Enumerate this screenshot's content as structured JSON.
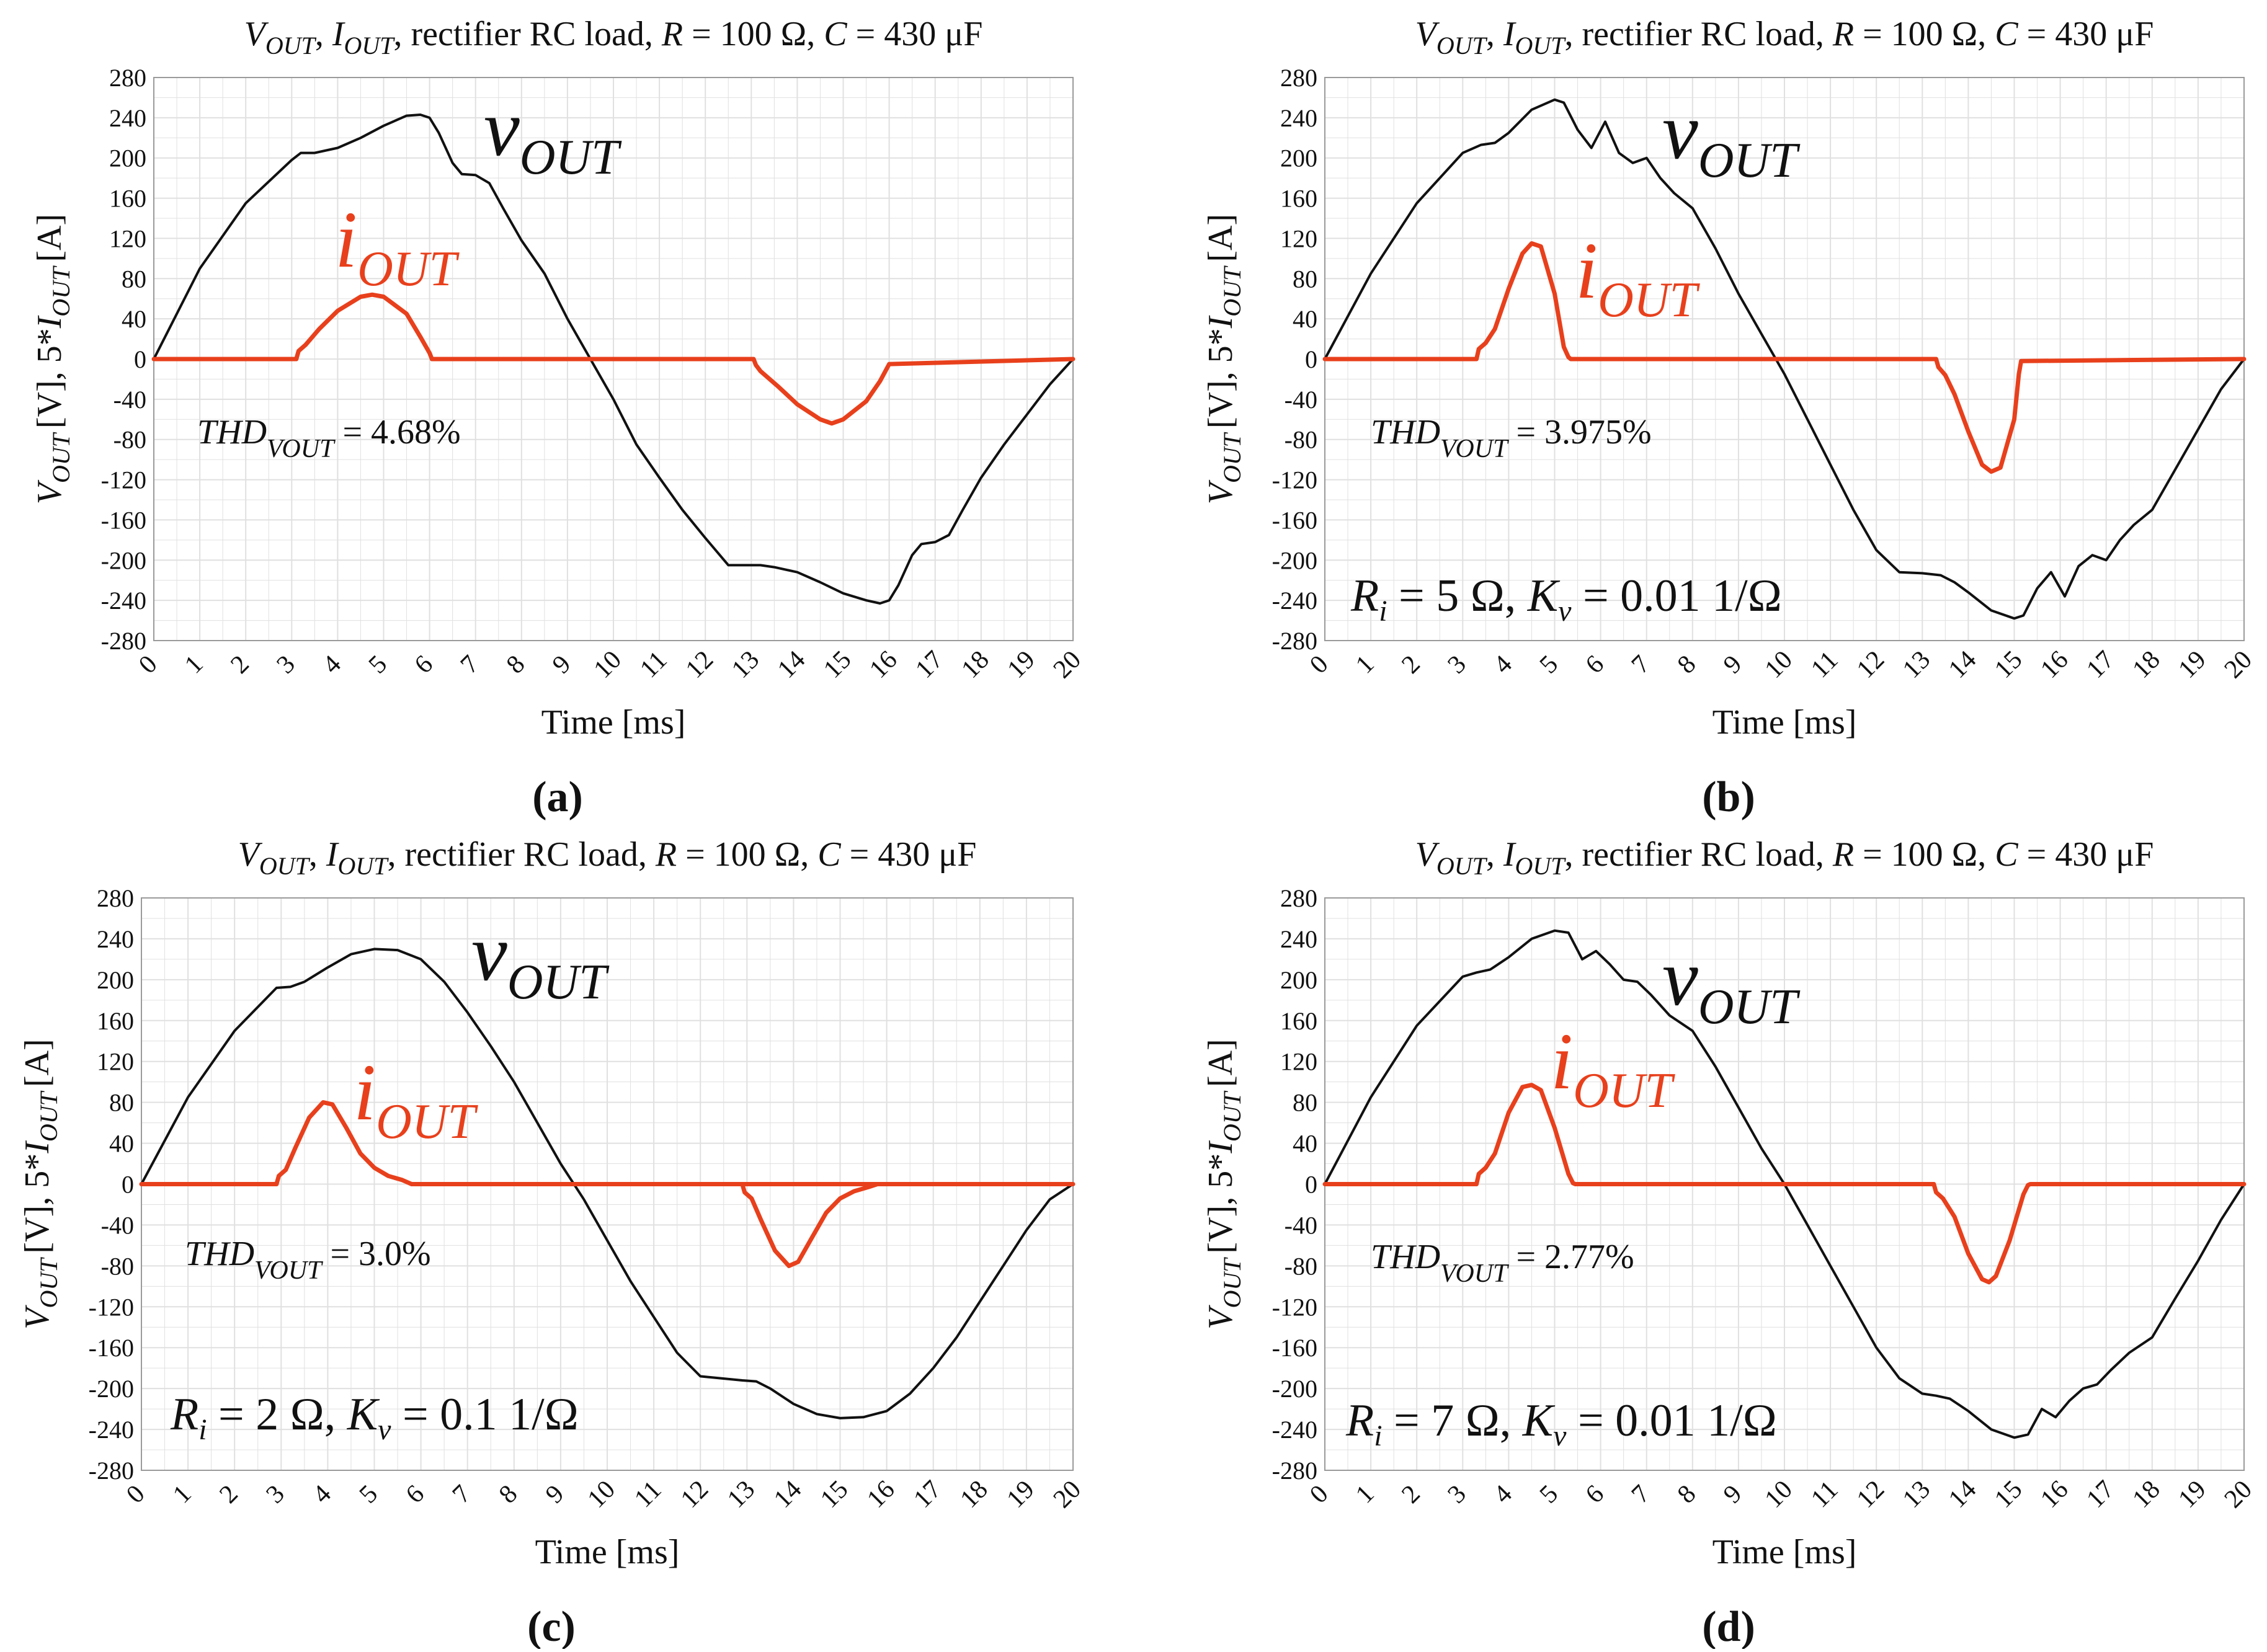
{
  "panels_common": {
    "x_ticks": [
      "0",
      "1",
      "2",
      "3",
      "4",
      "5",
      "6",
      "7",
      "8",
      "9",
      "10",
      "11",
      "12",
      "13",
      "14",
      "15",
      "16",
      "17",
      "18",
      "19",
      "20"
    ],
    "y_ticks": [
      "280",
      "240",
      "200",
      "160",
      "120",
      "80",
      "40",
      "0",
      "-40",
      "-80",
      "-120",
      "-160",
      "-200",
      "-240",
      "-280"
    ]
  },
  "colors": {
    "vout": "#111111",
    "iout": "#e8401c",
    "grid": "#e0e0e0",
    "frame": "#9a9a9a"
  },
  "chart_data": [
    {
      "type": "line",
      "panel_label": "(a)",
      "title": {
        "v_main": "V",
        "v_sub": "OUT",
        "i_main": "I",
        "i_sub": "OUT",
        "rest": "rectifier RC load,",
        "r_italic": "R",
        "r_value": "= 100 Ω,",
        "c_italic": "C",
        "c_value": "= 430",
        "c_unit": "μF"
      },
      "xlabel": "Time [ms]",
      "ylabel": {
        "v_main": "V",
        "v_sub": "OUT",
        "mid": "[V], 5*",
        "i_main": "I",
        "i_sub": "OUT",
        "end": "[A]"
      },
      "xlim": [
        0,
        20
      ],
      "ylim": [
        -280,
        280
      ],
      "grid": true,
      "series": [
        {
          "name": "v_OUT",
          "label_main": "v",
          "label_sub": "OUT",
          "x": [
            0,
            1,
            2,
            3,
            3.2,
            3.5,
            4,
            4.5,
            5,
            5.5,
            5.8,
            6,
            6.2,
            6.5,
            6.7,
            7,
            7.3,
            7.6,
            8,
            8.5,
            9,
            9.5,
            10,
            10.5,
            11,
            11.5,
            12,
            12.5,
            13,
            13.2,
            13.5,
            14,
            14.5,
            15,
            15.5,
            15.8,
            16,
            16.2,
            16.5,
            16.7,
            17,
            17.3,
            17.6,
            18,
            18.5,
            19,
            19.5,
            20
          ],
          "y": [
            0,
            90,
            155,
            198,
            205,
            205,
            210,
            220,
            232,
            242,
            243,
            240,
            225,
            195,
            184,
            183,
            175,
            150,
            118,
            85,
            40,
            0,
            -40,
            -85,
            -118,
            -150,
            -178,
            -205,
            -205,
            -205,
            -207,
            -212,
            -222,
            -233,
            -240,
            -243,
            -240,
            -225,
            -195,
            -184,
            -182,
            -175,
            -150,
            -118,
            -85,
            -55,
            -25,
            0
          ]
        },
        {
          "name": "i_OUT",
          "label_main": "i",
          "label_sub": "OUT",
          "x": [
            0,
            3.1,
            3.15,
            3.3,
            3.6,
            4,
            4.5,
            4.75,
            5,
            5.5,
            5.8,
            6,
            6.05,
            13.05,
            13.1,
            13.2,
            13.6,
            14,
            14.5,
            14.75,
            15,
            15.5,
            15.8,
            16,
            20
          ],
          "y": [
            0,
            0,
            8,
            14,
            30,
            48,
            62,
            64,
            62,
            45,
            22,
            6,
            0,
            0,
            -6,
            -12,
            -28,
            -45,
            -60,
            -64,
            -60,
            -42,
            -22,
            -5,
            0
          ]
        }
      ],
      "annotations": [
        {
          "main": "THD",
          "sub": "VOUT",
          "value": "= 4.68%"
        }
      ]
    },
    {
      "type": "line",
      "panel_label": "(b)",
      "title": {
        "v_main": "V",
        "v_sub": "OUT",
        "i_main": "I",
        "i_sub": "OUT",
        "rest": "rectifier RC load,",
        "r_italic": "R",
        "r_value": "= 100 Ω,",
        "c_italic": "C",
        "c_value": "= 430",
        "c_unit": "μF"
      },
      "xlabel": "Time [ms]",
      "ylabel": {
        "v_main": "V",
        "v_sub": "OUT",
        "mid": "[V], 5*",
        "i_main": "I",
        "i_sub": "OUT",
        "end": "[A]"
      },
      "xlim": [
        0,
        20
      ],
      "ylim": [
        -280,
        280
      ],
      "grid": true,
      "series": [
        {
          "name": "v_OUT",
          "label_main": "v",
          "label_sub": "OUT",
          "x": [
            0,
            1,
            2,
            3,
            3.4,
            3.7,
            4,
            4.5,
            5,
            5.2,
            5.5,
            5.8,
            6.1,
            6.4,
            6.7,
            7,
            7.3,
            7.6,
            8,
            8.5,
            9,
            9.5,
            10,
            10.5,
            11,
            11.5,
            12,
            12.5,
            13,
            13.4,
            13.7,
            14,
            14.5,
            15,
            15.2,
            15.5,
            15.8,
            16.1,
            16.4,
            16.7,
            17,
            17.3,
            17.6,
            18,
            18.5,
            19,
            19.5,
            20
          ],
          "y": [
            0,
            85,
            155,
            205,
            213,
            215,
            225,
            248,
            258,
            255,
            228,
            210,
            236,
            205,
            195,
            200,
            180,
            165,
            150,
            110,
            65,
            25,
            -15,
            -60,
            -105,
            -150,
            -190,
            -212,
            -213,
            -215,
            -222,
            -232,
            -250,
            -258,
            -255,
            -228,
            -212,
            -236,
            -206,
            -195,
            -200,
            -180,
            -165,
            -150,
            -110,
            -70,
            -30,
            0
          ]
        },
        {
          "name": "i_OUT",
          "label_main": "i",
          "label_sub": "OUT",
          "x": [
            0,
            3.3,
            3.35,
            3.5,
            3.7,
            4,
            4.3,
            4.5,
            4.7,
            5,
            5.2,
            5.3,
            5.35,
            13.3,
            13.35,
            13.5,
            13.7,
            14,
            14.3,
            14.5,
            14.7,
            15,
            15.1,
            15.15,
            20
          ],
          "y": [
            0,
            0,
            10,
            16,
            30,
            70,
            105,
            115,
            112,
            65,
            12,
            2,
            0,
            0,
            -8,
            -16,
            -35,
            -72,
            -105,
            -112,
            -108,
            -60,
            -15,
            -2,
            0
          ]
        }
      ],
      "annotations": [
        {
          "main": "THD",
          "sub": "VOUT",
          "value": "= 3.975%"
        },
        {
          "r_main": "R",
          "r_sub": "i",
          "r_value": "= 5 Ω,",
          "k_main": "K",
          "k_sub": "v",
          "k_value": "= 0.01 1/Ω"
        }
      ]
    },
    {
      "type": "line",
      "panel_label": "(c)",
      "title": {
        "v_main": "V",
        "v_sub": "OUT",
        "i_main": "I",
        "i_sub": "OUT",
        "rest": "rectifier RC load,",
        "r_italic": "R",
        "r_value": "= 100 Ω,",
        "c_italic": "C",
        "c_value": "= 430",
        "c_unit": "μF"
      },
      "xlabel": "Time [ms]",
      "ylabel": {
        "v_main": "V",
        "v_sub": "OUT",
        "mid": "[V], 5*",
        "i_main": "I",
        "i_sub": "OUT",
        "end": "[A]"
      },
      "xlim": [
        0,
        20
      ],
      "ylim": [
        -280,
        280
      ],
      "grid": true,
      "series": [
        {
          "name": "v_OUT",
          "label_main": "v",
          "label_sub": "OUT",
          "x": [
            0,
            1,
            2,
            2.9,
            3.2,
            3.5,
            4,
            4.5,
            5,
            5.5,
            6,
            6.5,
            7,
            7.5,
            8,
            8.5,
            9,
            9.5,
            10,
            10.5,
            11,
            11.5,
            12,
            12.9,
            13.2,
            13.5,
            14,
            14.5,
            15,
            15.5,
            16,
            16.5,
            17,
            17.5,
            18,
            18.5,
            19,
            19.5,
            20
          ],
          "y": [
            0,
            85,
            150,
            192,
            193,
            198,
            212,
            225,
            230,
            229,
            220,
            198,
            168,
            135,
            100,
            60,
            20,
            -15,
            -55,
            -95,
            -130,
            -165,
            -188,
            -192,
            -193,
            -200,
            -215,
            -225,
            -229,
            -228,
            -222,
            -205,
            -180,
            -150,
            -115,
            -80,
            -45,
            -15,
            0
          ]
        },
        {
          "name": "i_OUT",
          "label_main": "i",
          "label_sub": "OUT",
          "x": [
            0,
            2.9,
            2.95,
            3.1,
            3.3,
            3.6,
            3.9,
            4.1,
            4.4,
            4.7,
            5,
            5.3,
            5.6,
            5.8,
            20
          ],
          "y": [
            0,
            0,
            8,
            14,
            35,
            65,
            80,
            78,
            55,
            30,
            16,
            8,
            4,
            0,
            0
          ]
        },
        {
          "name": "i_OUT_neg",
          "x": [
            12.9,
            12.95,
            13.1,
            13.3,
            13.6,
            13.9,
            14.1,
            14.4,
            14.7,
            15,
            15.3,
            15.6,
            15.8
          ],
          "y": [
            0,
            -8,
            -14,
            -35,
            -65,
            -80,
            -76,
            -52,
            -28,
            -14,
            -7,
            -3,
            0
          ]
        }
      ],
      "annotations": [
        {
          "main": "THD",
          "sub": "VOUT",
          "value": "= 3.0%"
        },
        {
          "r_main": "R",
          "r_sub": "i",
          "r_value": "= 2 Ω,",
          "k_main": "K",
          "k_sub": "v",
          "k_value": "= 0.1 1/Ω"
        }
      ]
    },
    {
      "type": "line",
      "panel_label": "(d)",
      "title": {
        "v_main": "V",
        "v_sub": "OUT",
        "i_main": "I",
        "i_sub": "OUT",
        "rest": "rectifier RC load,",
        "r_italic": "R",
        "r_value": "= 100 Ω,",
        "c_italic": "C",
        "c_value": "= 430",
        "c_unit": "μF"
      },
      "xlabel": "Time [ms]",
      "ylabel": {
        "v_main": "V",
        "v_sub": "OUT",
        "mid": "[V], 5*",
        "i_main": "I",
        "i_sub": "OUT",
        "end": "[A]"
      },
      "xlim": [
        0,
        20
      ],
      "ylim": [
        -280,
        280
      ],
      "grid": true,
      "series": [
        {
          "name": "v_OUT",
          "label_main": "v",
          "label_sub": "OUT",
          "x": [
            0,
            1,
            2,
            3,
            3.3,
            3.6,
            4,
            4.5,
            5,
            5.3,
            5.6,
            5.9,
            6.2,
            6.5,
            6.8,
            7.1,
            7.5,
            8,
            8.5,
            9,
            9.5,
            10,
            10.5,
            11,
            11.5,
            12,
            12.5,
            13,
            13.3,
            13.6,
            14,
            14.5,
            15,
            15.3,
            15.6,
            15.9,
            16.2,
            16.5,
            16.8,
            17.1,
            17.5,
            18,
            18.5,
            19,
            19.5,
            20
          ],
          "y": [
            0,
            85,
            155,
            203,
            207,
            210,
            222,
            240,
            248,
            246,
            220,
            228,
            215,
            200,
            198,
            185,
            165,
            150,
            115,
            75,
            35,
            0,
            -40,
            -80,
            -120,
            -160,
            -190,
            -205,
            -207,
            -210,
            -222,
            -240,
            -248,
            -245,
            -220,
            -228,
            -212,
            -200,
            -196,
            -182,
            -165,
            -150,
            -112,
            -75,
            -35,
            0
          ]
        },
        {
          "name": "i_OUT",
          "label_main": "i",
          "label_sub": "OUT",
          "x": [
            0,
            3.3,
            3.35,
            3.5,
            3.7,
            4,
            4.3,
            4.5,
            4.7,
            5,
            5.3,
            5.4,
            5.45,
            13.25,
            13.3,
            13.45,
            13.7,
            14,
            14.3,
            14.45,
            14.6,
            14.9,
            15.2,
            15.3,
            15.35,
            20
          ],
          "y": [
            0,
            0,
            10,
            16,
            30,
            70,
            95,
            97,
            92,
            55,
            10,
            1,
            0,
            0,
            -8,
            -14,
            -32,
            -68,
            -93,
            -96,
            -90,
            -55,
            -10,
            -1,
            0,
            0
          ]
        }
      ],
      "annotations": [
        {
          "main": "THD",
          "sub": "VOUT",
          "value": "= 2.77%"
        },
        {
          "r_main": "R",
          "r_sub": "i",
          "r_value": "= 7 Ω,",
          "k_main": "K",
          "k_sub": "v",
          "k_value": "= 0.01 1/Ω"
        }
      ]
    }
  ]
}
